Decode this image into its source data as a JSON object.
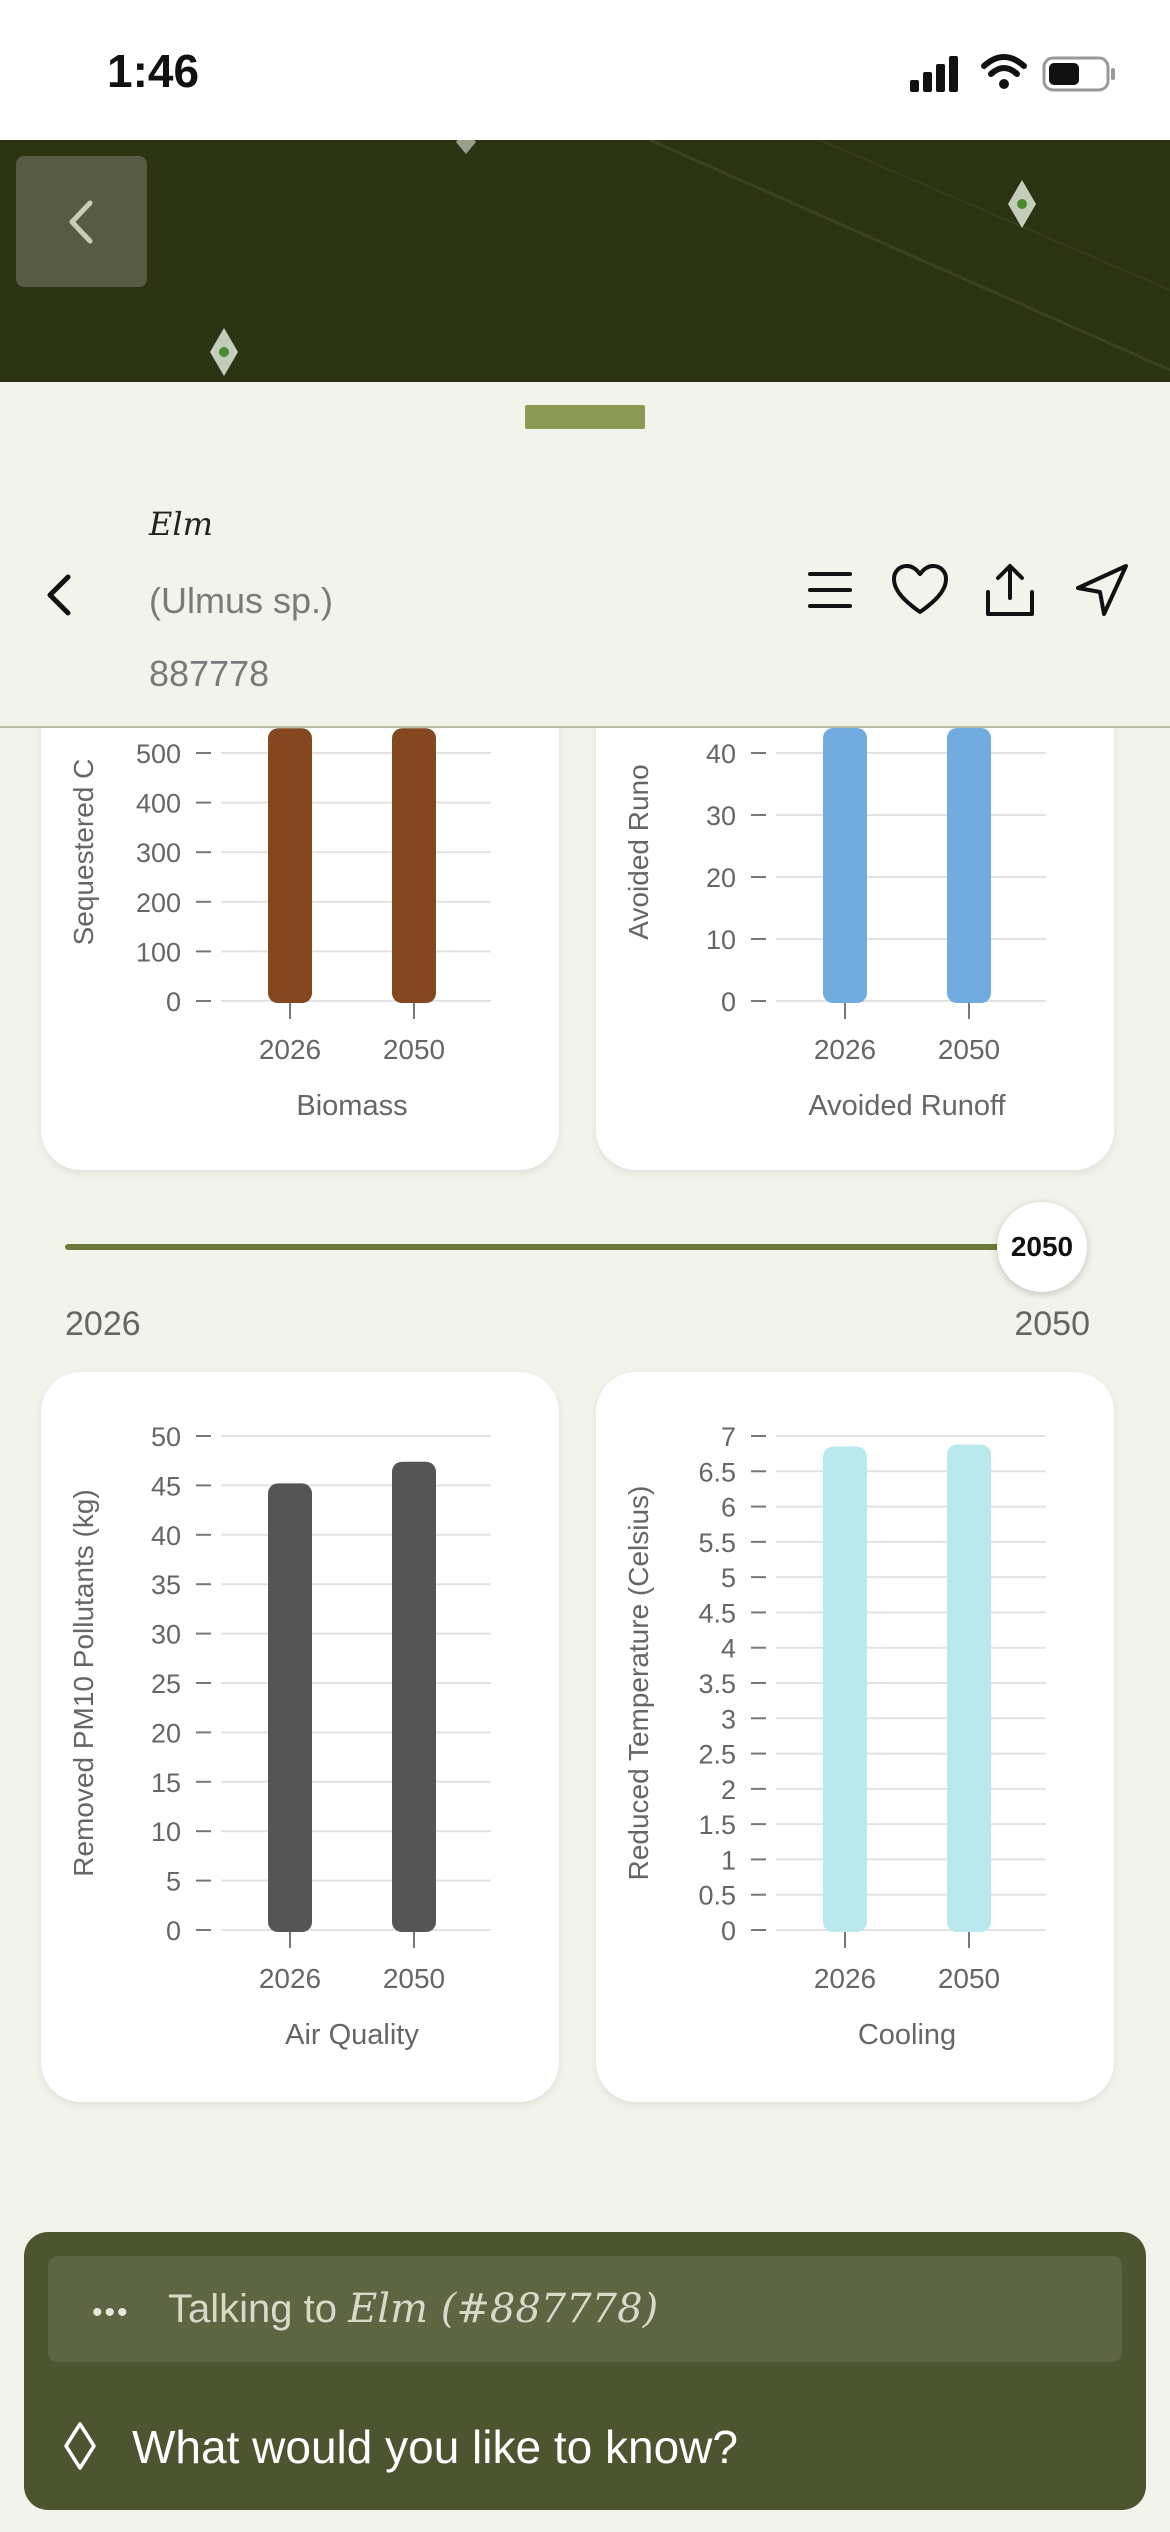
{
  "status_bar": {
    "time": "1:46"
  },
  "header": {
    "name": "Elm",
    "species": "(Ulmus sp.)",
    "id": "887778"
  },
  "colors": {
    "biomass": "#84471f",
    "runoff": "#72abdf",
    "air_quality": "#555555",
    "cooling": "#b9e9ec",
    "accent": "#8a9a55",
    "chat_bg": "#4d5530"
  },
  "chart_data": [
    {
      "type": "bar",
      "categories": [
        "2026",
        "2050"
      ],
      "values": [
        550,
        550
      ],
      "xlabel": "Biomass",
      "ylabel": "Sequestered C",
      "yticks": [
        "0",
        "100",
        "200",
        "300",
        "400",
        "500"
      ],
      "ylim": [
        0,
        500
      ]
    },
    {
      "type": "bar",
      "categories": [
        "2026",
        "2050"
      ],
      "values": [
        45,
        45
      ],
      "xlabel": "Avoided Runoff",
      "ylabel": "Avoided Runo",
      "yticks": [
        "0",
        "10",
        "20",
        "30",
        "40"
      ],
      "ylim": [
        0,
        40
      ]
    },
    {
      "type": "bar",
      "categories": [
        "2026",
        "2050"
      ],
      "values": [
        45.2,
        47.4
      ],
      "xlabel": "Air Quality",
      "ylabel": "Removed PM10 Pollutants (kg)",
      "yticks": [
        "0",
        "5",
        "10",
        "15",
        "20",
        "25",
        "30",
        "35",
        "40",
        "45",
        "50"
      ],
      "ylim": [
        0,
        50
      ]
    },
    {
      "type": "bar",
      "categories": [
        "2026",
        "2050"
      ],
      "values": [
        6.85,
        6.88
      ],
      "xlabel": "Cooling",
      "ylabel": "Reduced Temperature (Celsius)",
      "yticks": [
        "0",
        "0.5",
        "1",
        "1.5",
        "2",
        "2.5",
        "3",
        "3.5",
        "4",
        "4.5",
        "5",
        "5.5",
        "6",
        "6.5",
        "7"
      ],
      "ylim": [
        0,
        7
      ]
    }
  ],
  "slider": {
    "value_label": "2050",
    "min_label": "2026",
    "max_label": "2050",
    "value": 2050,
    "min": 2026,
    "max": 2050
  },
  "chat": {
    "status_prefix": "Talking to ",
    "status_name": "Elm (#887778)",
    "placeholder": "What would you like to know?"
  }
}
